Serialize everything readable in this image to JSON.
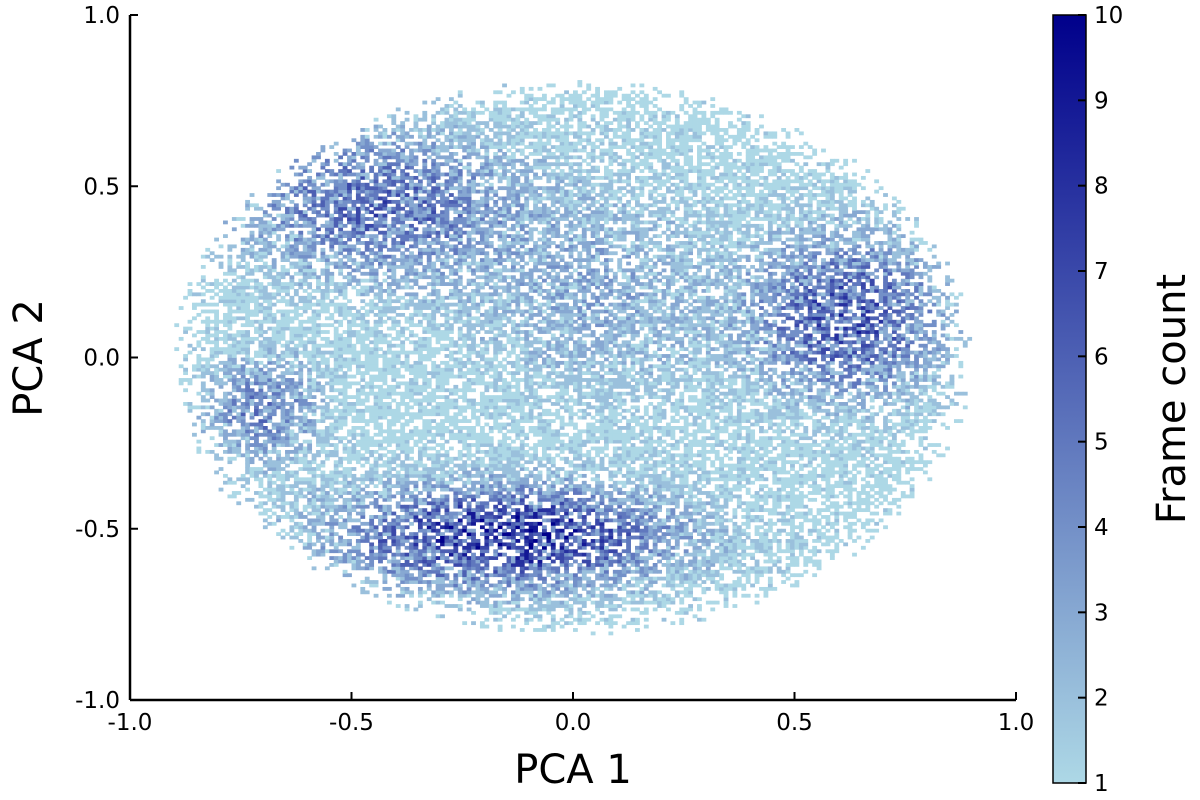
{
  "chart_data": {
    "type": "heatmap",
    "title": "",
    "xlabel": "PCA 1",
    "ylabel": "PCA 2",
    "xlim": [
      -1.0,
      1.0
    ],
    "ylim": [
      -1.0,
      1.0
    ],
    "x_ticks": [
      -1.0,
      -0.5,
      0.0,
      0.5,
      1.0
    ],
    "y_ticks": [
      -1.0,
      -0.5,
      0.0,
      0.5,
      1.0
    ],
    "x_tick_labels": [
      "-1.0",
      "-0.5",
      "0.0",
      "0.5",
      "1.0"
    ],
    "y_tick_labels": [
      "-1.0",
      "-0.5",
      "0.0",
      "0.5",
      "1.0"
    ],
    "grid": false,
    "colorbar": {
      "label": "Frame count",
      "min": 1,
      "max": 10,
      "ticks": [
        1,
        2,
        3,
        4,
        5,
        6,
        7,
        8,
        9,
        10
      ],
      "tick_labels": [
        "1",
        "2",
        "3",
        "4",
        "5",
        "6",
        "7",
        "8",
        "9",
        "10"
      ],
      "color_low": "#add8e6",
      "color_high": "#00008b"
    },
    "density_regions": [
      {
        "center": [
          -0.45,
          0.45
        ],
        "radius": [
          0.28,
          0.2
        ],
        "peak_count": 6
      },
      {
        "center": [
          -0.7,
          -0.15
        ],
        "radius": [
          0.12,
          0.15
        ],
        "peak_count": 5
      },
      {
        "center": [
          0.62,
          0.12
        ],
        "radius": [
          0.2,
          0.22
        ],
        "peak_count": 7
      },
      {
        "center": [
          -0.15,
          -0.52
        ],
        "radius": [
          0.35,
          0.14
        ],
        "peak_count": 9
      },
      {
        "center": [
          0.05,
          0.2
        ],
        "radius": [
          0.3,
          0.3
        ],
        "peak_count": 3
      }
    ],
    "data_extent": {
      "center": [
        0.0,
        0.0
      ],
      "radius_x": 0.87,
      "radius_y": 0.78
    }
  }
}
